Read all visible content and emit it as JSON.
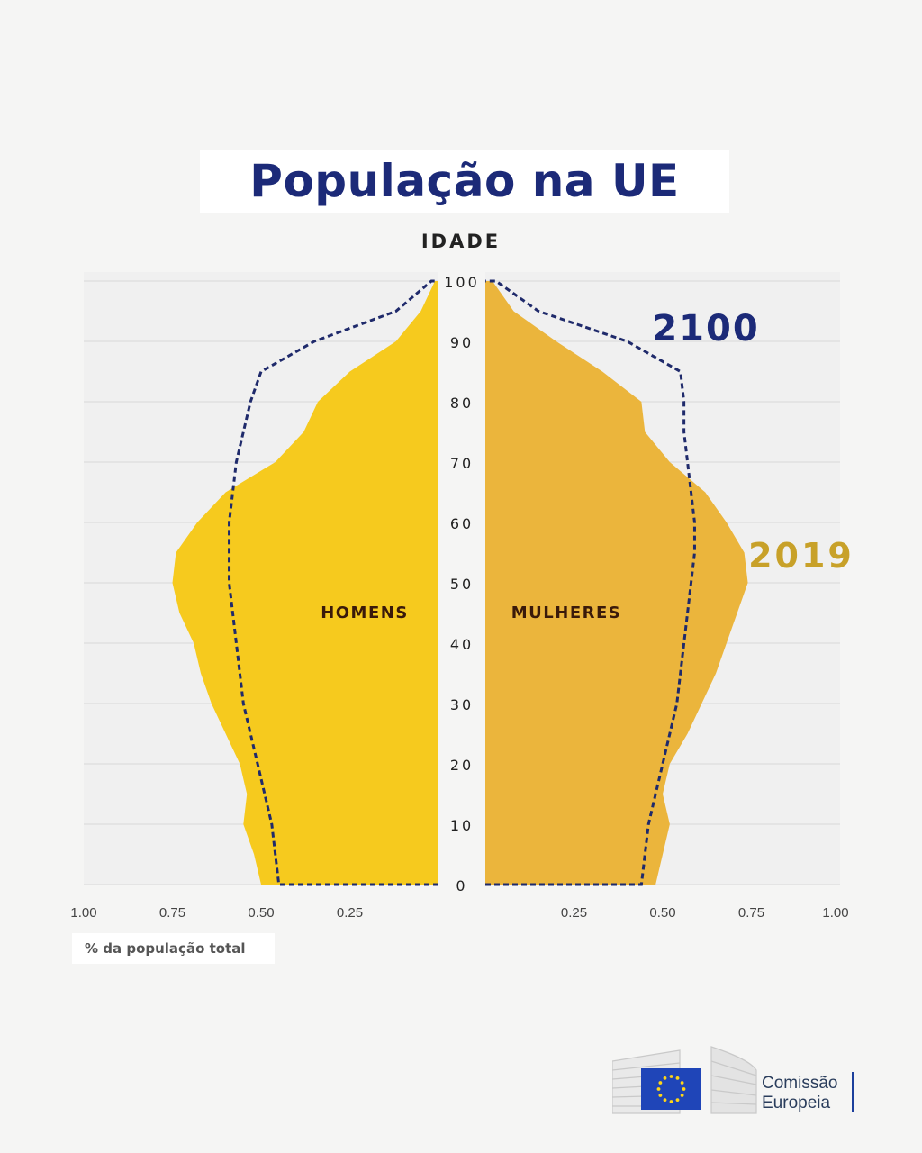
{
  "header": {
    "title": "População na UE",
    "age_axis_label": "IDADE"
  },
  "labels": {
    "left_group": "HOMENS",
    "right_group": "MULHERES",
    "year_future": "2100",
    "year_current": "2019",
    "footnote": "% da população total"
  },
  "logo": {
    "line1": "Comissão",
    "line2": "Europeia"
  },
  "colors": {
    "men": "#f6ca1e",
    "women": "#ebb53c",
    "projection_line": "#1f2a6b",
    "year_future": "#1c2a78",
    "year_current": "#c8a129",
    "grid": "#d9d9d9",
    "panel": "#f0f0f0"
  },
  "chart_data": {
    "type": "area",
    "subtype": "population-pyramid",
    "title": "População na UE",
    "ylabel": "IDADE",
    "xlabel": "% da população total",
    "y_ticks": [
      "0",
      "10",
      "20",
      "30",
      "40",
      "50",
      "60",
      "70",
      "80",
      "90",
      "100"
    ],
    "x_ticks_left": [
      "1.00",
      "0.75",
      "0.50",
      "0.25"
    ],
    "x_ticks_right": [
      "0.25",
      "0.50",
      "0.75",
      "1.00"
    ],
    "ylim": [
      0,
      100
    ],
    "xlim": [
      0,
      1.0
    ],
    "ages": [
      0,
      5,
      10,
      15,
      20,
      25,
      30,
      35,
      40,
      45,
      50,
      55,
      60,
      65,
      70,
      75,
      80,
      85,
      90,
      95,
      100
    ],
    "series": [
      {
        "name": "HOMENS",
        "year": "2019",
        "side": "left",
        "values": [
          0.5,
          0.52,
          0.55,
          0.54,
          0.56,
          0.6,
          0.64,
          0.67,
          0.69,
          0.73,
          0.75,
          0.74,
          0.68,
          0.6,
          0.46,
          0.38,
          0.34,
          0.25,
          0.12,
          0.05,
          0.01
        ]
      },
      {
        "name": "MULHERES",
        "year": "2019",
        "side": "right",
        "values": [
          0.48,
          0.5,
          0.52,
          0.5,
          0.52,
          0.57,
          0.61,
          0.65,
          0.68,
          0.71,
          0.74,
          0.73,
          0.68,
          0.62,
          0.52,
          0.45,
          0.44,
          0.33,
          0.2,
          0.08,
          0.02
        ]
      },
      {
        "name": "2100",
        "year": "2100",
        "side": "left",
        "style": "dashed",
        "values": [
          0.45,
          0.46,
          0.47,
          0.49,
          0.51,
          0.53,
          0.55,
          0.56,
          0.57,
          0.58,
          0.59,
          0.59,
          0.59,
          0.58,
          0.57,
          0.55,
          0.53,
          0.5,
          0.35,
          0.12,
          0.02
        ]
      },
      {
        "name": "2100",
        "year": "2100",
        "side": "right",
        "style": "dashed",
        "values": [
          0.44,
          0.45,
          0.46,
          0.48,
          0.5,
          0.52,
          0.54,
          0.55,
          0.56,
          0.57,
          0.58,
          0.59,
          0.59,
          0.58,
          0.57,
          0.56,
          0.56,
          0.55,
          0.4,
          0.15,
          0.03
        ]
      }
    ]
  }
}
